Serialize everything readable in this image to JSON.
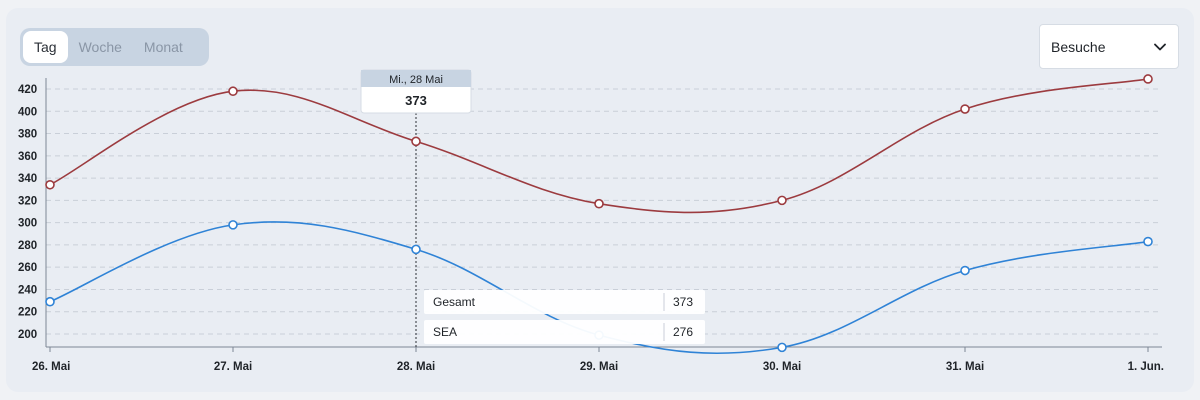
{
  "tabs": [
    {
      "label": "Tag",
      "active": true
    },
    {
      "label": "Woche",
      "active": false
    },
    {
      "label": "Monat",
      "active": false
    }
  ],
  "metric_select": {
    "value": "Besuche"
  },
  "tooltip": {
    "date": "Mi., 28 Mai",
    "value": "373",
    "rows": [
      {
        "label": "Gesamt",
        "value": "373"
      },
      {
        "label": "SEA",
        "value": "276"
      }
    ]
  },
  "colors": {
    "gesamt": "#9c3b3f",
    "sea": "#2f83d6",
    "grid": "#c9cfd8"
  },
  "chart_data": {
    "type": "line",
    "categories": [
      "26. Mai",
      "27. Mai",
      "28. Mai",
      "29. Mai",
      "30. Mai",
      "31. Mai",
      "1. Jun."
    ],
    "series": [
      {
        "name": "Gesamt",
        "values": [
          334,
          418,
          373,
          317,
          320,
          402,
          429
        ]
      },
      {
        "name": "SEA",
        "values": [
          229,
          298,
          276,
          199,
          188,
          257,
          283
        ]
      }
    ],
    "yticks": [
      200,
      220,
      240,
      260,
      280,
      300,
      320,
      340,
      360,
      380,
      400,
      420
    ],
    "ylim": [
      187,
      440
    ],
    "grid": true,
    "highlight_index": 2,
    "title": "",
    "xlabel": "",
    "ylabel": ""
  }
}
